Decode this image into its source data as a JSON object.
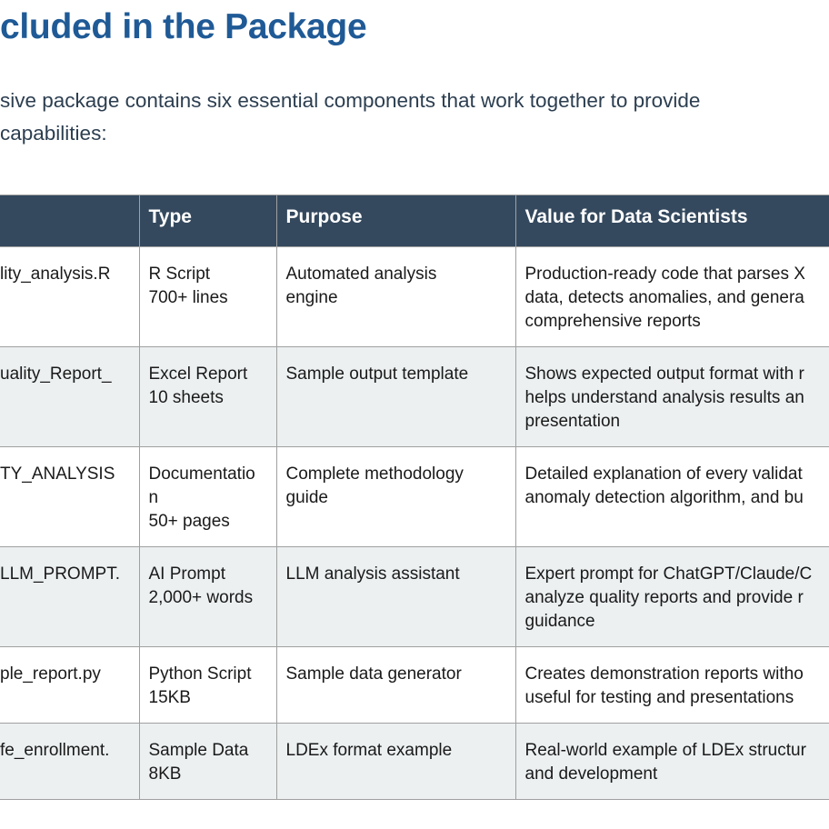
{
  "heading": "cluded in the Package",
  "intro_lines": [
    "sive package contains six essential components that work together to provide",
    "capabilities:"
  ],
  "table": {
    "headers": [
      "",
      "Type",
      "Purpose",
      "Value for Data Scientists"
    ],
    "rows": [
      {
        "file": "lity_analysis.R",
        "type": [
          "R Script",
          "700+ lines"
        ],
        "purpose": [
          "Automated analysis",
          "engine"
        ],
        "value": [
          "Production-ready code that parses X",
          "data, detects anomalies, and genera",
          "comprehensive reports"
        ]
      },
      {
        "file": "uality_Report_",
        "type": [
          "Excel Report",
          "10 sheets"
        ],
        "purpose": [
          "Sample output template"
        ],
        "value": [
          "Shows expected output format with r",
          "helps understand analysis results an",
          "presentation"
        ]
      },
      {
        "file": "TY_ANALYSIS",
        "type": [
          "Documentatio",
          "n",
          "50+ pages"
        ],
        "purpose": [
          "Complete methodology",
          "guide"
        ],
        "value": [
          "Detailed explanation of every validat",
          "anomaly detection algorithm, and bu"
        ]
      },
      {
        "file": "LLM_PROMPT.",
        "type": [
          "AI Prompt",
          "2,000+ words"
        ],
        "purpose": [
          "LLM analysis assistant"
        ],
        "value": [
          "Expert prompt for ChatGPT/Claude/C",
          "analyze quality reports and provide r",
          "guidance"
        ]
      },
      {
        "file": "ple_report.py",
        "type": [
          "Python Script",
          "15KB"
        ],
        "purpose": [
          "Sample data generator"
        ],
        "value": [
          "Creates demonstration reports witho",
          "useful for testing and presentations"
        ]
      },
      {
        "file": "fe_enrollment.",
        "type": [
          "Sample Data",
          "8KB"
        ],
        "purpose": [
          "LDEx format example"
        ],
        "value": [
          "Real-world example of LDEx structur",
          "and development"
        ]
      }
    ]
  },
  "colors": {
    "heading": "#1f5a96",
    "header_bg": "#34495e",
    "shade_row": "#ecf0f1",
    "body_text": "#2c3e50"
  }
}
